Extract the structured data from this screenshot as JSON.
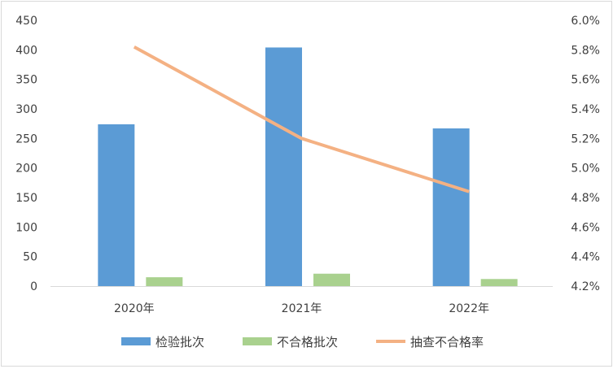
{
  "chart_data": {
    "type": "bar",
    "title": "",
    "categories": [
      "2020年",
      "2021年",
      "2022年"
    ],
    "series": [
      {
        "name": "检验批次",
        "type": "bar",
        "axis": "left",
        "color": "#5b9bd5",
        "values": [
          274,
          404,
          267
        ]
      },
      {
        "name": "不合格批次",
        "type": "bar",
        "axis": "left",
        "color": "#a9d18e",
        "values": [
          15,
          21,
          12
        ]
      },
      {
        "name": "抽查不合格率",
        "type": "line",
        "axis": "right",
        "color": "#f4b183",
        "values": [
          5.82,
          5.2,
          4.84
        ]
      }
    ],
    "y_left": {
      "min": 0,
      "max": 450,
      "step": 50,
      "ticks": [
        "0",
        "50",
        "100",
        "150",
        "200",
        "250",
        "300",
        "350",
        "400",
        "450"
      ]
    },
    "y_right": {
      "min": 4.2,
      "max": 6.0,
      "step": 0.2,
      "unit": "%",
      "ticks": [
        "4.2%",
        "4.4%",
        "4.6%",
        "4.8%",
        "5.0%",
        "5.2%",
        "5.4%",
        "5.6%",
        "5.8%",
        "6.0%"
      ]
    },
    "grid": false,
    "legend_position": "bottom"
  }
}
